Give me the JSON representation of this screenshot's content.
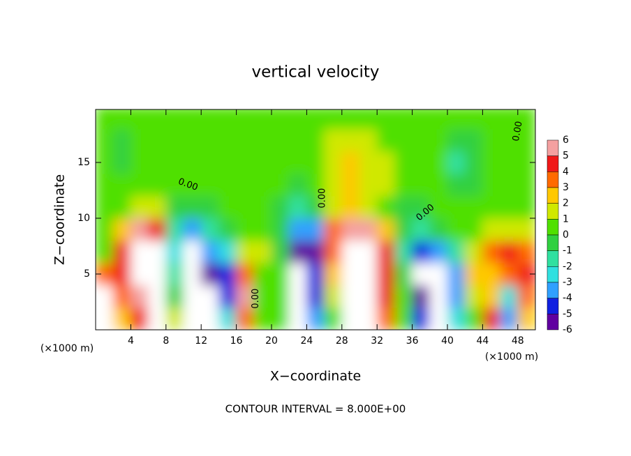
{
  "chart_data": {
    "type": "contour",
    "title": "vertical velocity",
    "x_label": "X−coordinate",
    "y_label": "Z−coordinate",
    "x_unit": "(×1000 m)",
    "x_unit_right": "(×1000 m)",
    "footer": "CONTOUR INTERVAL = 8.000E+00",
    "xlim": [
      0,
      50
    ],
    "ylim": [
      0,
      19.75
    ],
    "xticks": [
      4,
      8,
      12,
      16,
      20,
      24,
      28,
      32,
      36,
      40,
      44,
      48
    ],
    "yticks": [
      5,
      10,
      15
    ],
    "x": [
      1,
      3,
      5,
      7,
      9,
      11,
      13,
      15,
      17,
      19,
      21,
      23,
      25,
      27,
      29,
      31,
      33,
      35,
      37,
      39,
      41,
      43,
      45,
      47,
      49
    ],
    "y": [
      1,
      3,
      5,
      7,
      9,
      11,
      13,
      15,
      17,
      19
    ],
    "values": [
      [
        7,
        2,
        4,
        7,
        1,
        -7,
        -7,
        -3,
        3,
        0,
        0,
        -7,
        -4,
        0,
        7,
        7,
        3,
        0,
        -5,
        -7,
        -3,
        0,
        4,
        -4,
        2
      ],
      [
        8,
        3,
        6,
        8,
        -1,
        -8,
        -8,
        -5,
        5,
        0,
        0,
        -8,
        -5,
        1,
        8,
        8,
        4,
        0,
        -6,
        -8,
        -4,
        1,
        2,
        -3,
        3
      ],
      [
        3,
        4,
        8,
        8,
        -2,
        -8,
        -6,
        -5,
        3,
        0,
        0,
        -8,
        -5,
        2,
        8,
        8,
        4,
        -1,
        -7,
        -8,
        -4,
        2,
        2,
        3,
        4
      ],
      [
        0,
        4,
        8,
        7,
        -3,
        -7,
        -4,
        -3,
        1,
        1,
        -1,
        -6,
        -6,
        3,
        8,
        7,
        4,
        -2,
        -5,
        -4,
        -2,
        1,
        3,
        4,
        3
      ],
      [
        0,
        2,
        5,
        4,
        -2,
        -4,
        -2,
        -1,
        0,
        0,
        -1,
        -4,
        -4,
        3,
        6,
        5,
        2,
        -1,
        -2,
        -1,
        0,
        0,
        1,
        1,
        1
      ],
      [
        0.5,
        0.5,
        1,
        1,
        -0.5,
        -1,
        -0.5,
        0,
        0,
        0,
        -1,
        -2,
        -1,
        1,
        2,
        1,
        0.5,
        -1,
        -1,
        0,
        0.5,
        0.5,
        0.5,
        0.5,
        0.5
      ],
      [
        0.5,
        0.3,
        0.5,
        0.5,
        0.5,
        0,
        0.3,
        0.3,
        0.5,
        0.5,
        0,
        -0.5,
        0,
        1,
        2,
        1.5,
        1,
        0.5,
        0,
        0.5,
        -1,
        -0.5,
        0.5,
        0.5,
        0.5
      ],
      [
        0.3,
        -0.3,
        0,
        0.5,
        0.5,
        0.5,
        0.5,
        0.5,
        0.5,
        0.5,
        0.5,
        0.3,
        0.5,
        1.5,
        2,
        1.5,
        1,
        0.5,
        0.5,
        0.5,
        -1.5,
        -1,
        0,
        0.5,
        0.5
      ],
      [
        0.3,
        -0.3,
        0,
        0.3,
        0.5,
        0.5,
        0.5,
        0.5,
        0.5,
        0.5,
        0.5,
        0.5,
        0.5,
        1,
        1,
        1,
        0.5,
        0.5,
        0.3,
        0.3,
        -0.5,
        -0.5,
        0,
        0.3,
        0.5
      ],
      [
        0.3,
        0.3,
        0.3,
        0.3,
        0.5,
        0.5,
        0.5,
        0.5,
        0.5,
        0.5,
        0.5,
        0.5,
        0.5,
        0.5,
        0.5,
        0.5,
        0.5,
        0.5,
        0.3,
        0.3,
        0,
        0,
        0.3,
        0.3,
        0.3
      ]
    ],
    "colorbar_ticks": [
      6,
      5,
      4,
      3,
      2,
      1,
      0,
      -1,
      -2,
      -3,
      -4,
      -5,
      -6
    ],
    "colors": [
      "#f4a0a0",
      "#f01818",
      "#ff6a00",
      "#ffc800",
      "#d0e800",
      "#50e000",
      "#30d040",
      "#30e0a0",
      "#30e0e0",
      "#30a0ff",
      "#1020e0",
      "#6000a0"
    ],
    "overflow_color": "#ffffff",
    "annotations": [
      "0.00",
      "0.00",
      "0.00",
      "0.00",
      "0.00"
    ]
  }
}
